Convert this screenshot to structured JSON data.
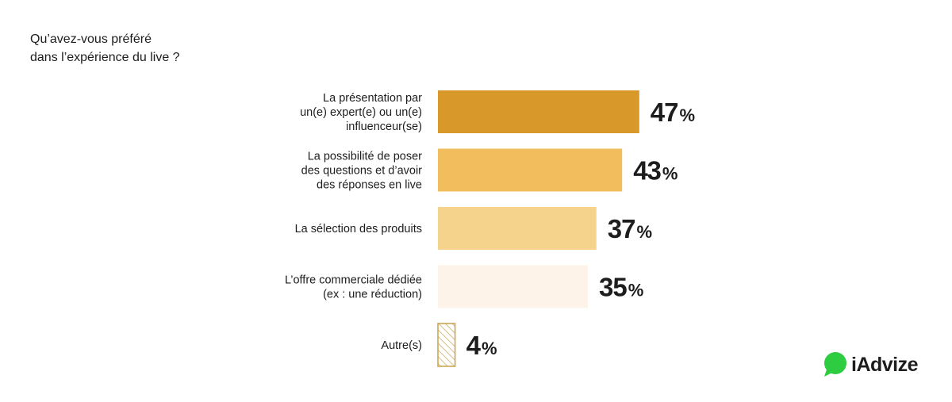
{
  "chart_data": {
    "type": "bar",
    "orientation": "horizontal",
    "title": "Qu’avez-vous préféré\ndans l’expérience du live ?",
    "value_suffix": "%",
    "categories": [
      "La présentation par\nun(e) expert(e) ou un(e)\ninfluenceur(se)",
      "La possibilité de poser\ndes questions et d’avoir\ndes réponses en live",
      "La sélection des produits",
      "L’offre commerciale dédiée\n(ex : une réduction)",
      "Autre(s)"
    ],
    "values": [
      47,
      43,
      37,
      35,
      4
    ],
    "colors": [
      "#d8992a",
      "#f2bd5c",
      "#f6d38d",
      "#fdf3e8",
      "#ffffff"
    ],
    "patterns": [
      "solid",
      "solid",
      "solid",
      "solid",
      "hatched"
    ],
    "hatch_color": "#c9a24a",
    "xlim": [
      0,
      100
    ],
    "grid": false,
    "legend": "none"
  },
  "brand": {
    "name": "iAdvize",
    "icon": "chat-bubble-icon",
    "color": "#2ecc40"
  }
}
